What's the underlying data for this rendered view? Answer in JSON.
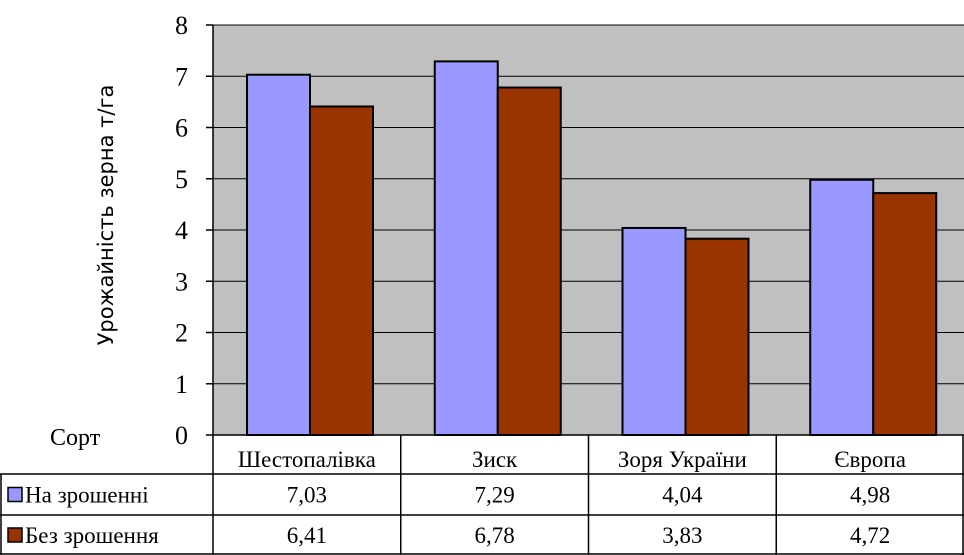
{
  "colors": {
    "plot_background": "#c0c0c0",
    "gridline": "#000000",
    "series_irrigated": "#9999ff",
    "series_non_irrigated": "#993300",
    "bar_outline": "#000000"
  },
  "chart_data": {
    "type": "bar",
    "title": "",
    "xlabel": "Сорт",
    "ylabel": "Урожайність зерна т/га",
    "ylim": [
      0,
      8
    ],
    "yticks": [
      "0",
      "1",
      "2",
      "3",
      "4",
      "5",
      "6",
      "7",
      "8"
    ],
    "grid": true,
    "legend": "in data table",
    "categories": [
      "Шестопалівка",
      "Зиск",
      "Зоря України",
      "Європа"
    ],
    "series": [
      {
        "name": "На зрошенні",
        "color": "#9999ff",
        "values": [
          7.03,
          7.29,
          4.04,
          4.98
        ],
        "labels": [
          "7,03",
          "7,29",
          "4,04",
          "4,98"
        ]
      },
      {
        "name": "Без зрошення",
        "color": "#993300",
        "values": [
          6.41,
          6.78,
          3.83,
          4.72
        ],
        "labels": [
          "6,41",
          "6,78",
          "3,83",
          "4,72"
        ]
      }
    ]
  }
}
